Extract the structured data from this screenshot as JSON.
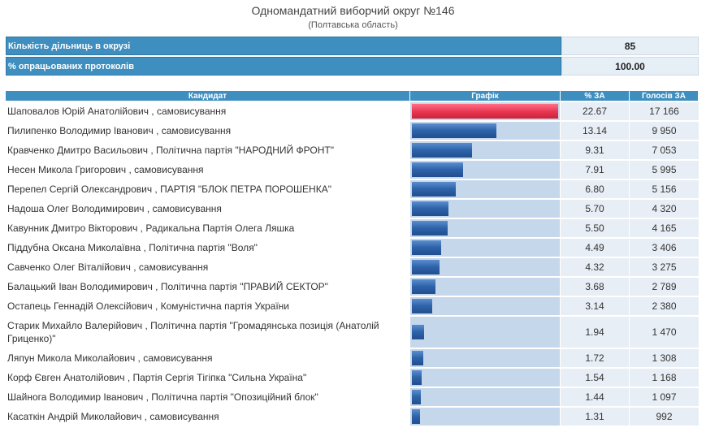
{
  "header": {
    "title": "Одномандатний виборчий округ №146",
    "subtitle": "(Полтавська область)"
  },
  "summary": [
    {
      "label": "Кількість дільниць в окрузі",
      "value": "85"
    },
    {
      "label": "% опрацьованих протоколів",
      "value": "100.00"
    }
  ],
  "table": {
    "headers": {
      "candidate": "Кандидат",
      "graph": "Графік",
      "percent": "% ЗА",
      "votes": "Голосів ЗА"
    },
    "bar_colors": {
      "leader": "#e8344f",
      "other": "#2e62a8"
    },
    "rows": [
      {
        "candidate": "Шаповалов Юрій Анатолійович , самовисування",
        "percent": "22.67",
        "votes": "17 166"
      },
      {
        "candidate": "Пилипенко Володимир Іванович , самовисування",
        "percent": "13.14",
        "votes": "9 950"
      },
      {
        "candidate": "Кравченко Дмитро Васильович , Політична партія \"НАРОДНИЙ ФРОНТ\"",
        "percent": "9.31",
        "votes": "7 053"
      },
      {
        "candidate": "Несен Микола Григорович , самовисування",
        "percent": "7.91",
        "votes": "5 995"
      },
      {
        "candidate": "Перепел Сергій Олександрович , ПАРТІЯ \"БЛОК ПЕТРА ПОРОШЕНКА\"",
        "percent": "6.80",
        "votes": "5 156"
      },
      {
        "candidate": "Надоша Олег Володимирович , самовисування",
        "percent": "5.70",
        "votes": "4 320"
      },
      {
        "candidate": "Кавунник Дмитро Вікторович , Радикальна Партія Олега Ляшка",
        "percent": "5.50",
        "votes": "4 165"
      },
      {
        "candidate": "Піддубна Оксана Миколаївна , Політична партія \"Воля\"",
        "percent": "4.49",
        "votes": "3 406"
      },
      {
        "candidate": "Савченко Олег Віталійович , самовисування",
        "percent": "4.32",
        "votes": "3 275"
      },
      {
        "candidate": "Балацький Іван Володимирович , Політична партія \"ПРАВИЙ СЕКТОР\"",
        "percent": "3.68",
        "votes": "2 789"
      },
      {
        "candidate": "Остапець Геннадій Олексійович , Комуністична партія України",
        "percent": "3.14",
        "votes": "2 380"
      },
      {
        "candidate": "Старик Михайло Валерійович , Політична партія \"Громадянська позиція (Анатолій Гриценко)\"",
        "percent": "1.94",
        "votes": "1 470"
      },
      {
        "candidate": "Ляпун Микола Миколайович , самовисування",
        "percent": "1.72",
        "votes": "1 308"
      },
      {
        "candidate": "Корф Євген Анатолійович , Партія Сергія Тігіпка \"Сильна Україна\"",
        "percent": "1.54",
        "votes": "1 168"
      },
      {
        "candidate": "Шайнога Володимир Іванович , Політична партія \"Опозиційний блок\"",
        "percent": "1.44",
        "votes": "1 097"
      },
      {
        "candidate": "Касаткін Андрій Миколайович , самовисування",
        "percent": "1.31",
        "votes": "992"
      }
    ]
  }
}
